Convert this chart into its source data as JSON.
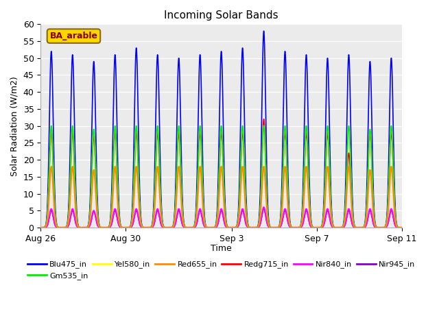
{
  "title": "Incoming Solar Bands",
  "xlabel": "Time",
  "ylabel": "Solar Radiation (W/m2)",
  "annotation": "BA_arable",
  "annotation_color": "#8B0000",
  "annotation_bg": "#FFD700",
  "ylim": [
    0,
    60
  ],
  "yticks": [
    0,
    5,
    10,
    15,
    20,
    25,
    30,
    35,
    40,
    45,
    50,
    55,
    60
  ],
  "num_days": 17,
  "xtick_labels": [
    "Aug 26",
    "Aug 30",
    "Sep 3",
    "Sep 7",
    "Sep 11"
  ],
  "xtick_positions": [
    0,
    4,
    9,
    13,
    17
  ],
  "series": [
    {
      "name": "Blu475_in",
      "color": "#0000FF",
      "lw": 1.2
    },
    {
      "name": "Gm535_in",
      "color": "#00EE00",
      "lw": 1.2
    },
    {
      "name": "Yel580_in",
      "color": "#FFFF00",
      "lw": 1.2
    },
    {
      "name": "Red655_in",
      "color": "#FF8C00",
      "lw": 1.5
    },
    {
      "name": "Redg715_in",
      "color": "#FF0000",
      "lw": 1.2
    },
    {
      "name": "Nir840_in",
      "color": "#FF00FF",
      "lw": 1.5
    },
    {
      "name": "Nir945_in",
      "color": "#8800CC",
      "lw": 1.2
    }
  ],
  "peaks_per_series": [
    [
      52,
      51,
      49,
      51,
      53,
      51,
      50,
      51,
      52,
      53,
      58,
      52,
      51,
      50,
      51,
      49,
      50
    ],
    [
      30,
      30,
      29,
      30,
      30,
      30,
      30,
      30,
      30,
      30,
      30,
      30,
      30,
      30,
      30,
      29,
      30
    ],
    [
      30,
      30,
      29,
      30,
      30,
      30,
      30,
      30,
      30,
      30,
      30,
      30,
      30,
      30,
      30,
      29,
      30
    ],
    [
      18,
      18,
      17,
      18,
      18,
      18,
      18,
      18,
      18,
      18,
      18,
      18,
      18,
      18,
      18,
      17,
      18
    ],
    [
      28,
      28,
      27,
      28,
      28,
      28,
      28,
      28,
      28,
      28,
      32,
      28,
      28,
      28,
      22,
      28,
      28
    ],
    [
      5.5,
      5.5,
      5,
      5.5,
      5.5,
      5.5,
      5.5,
      5.5,
      5.5,
      5.5,
      6,
      5.5,
      5.5,
      5.5,
      5.5,
      5.5,
      5.5
    ],
    [
      5,
      5,
      4.8,
      5,
      5,
      5,
      5,
      5,
      5,
      5,
      5.5,
      5,
      5,
      5,
      5,
      5,
      5
    ]
  ],
  "legend_order": [
    0,
    1,
    2,
    3,
    4,
    5,
    6
  ]
}
